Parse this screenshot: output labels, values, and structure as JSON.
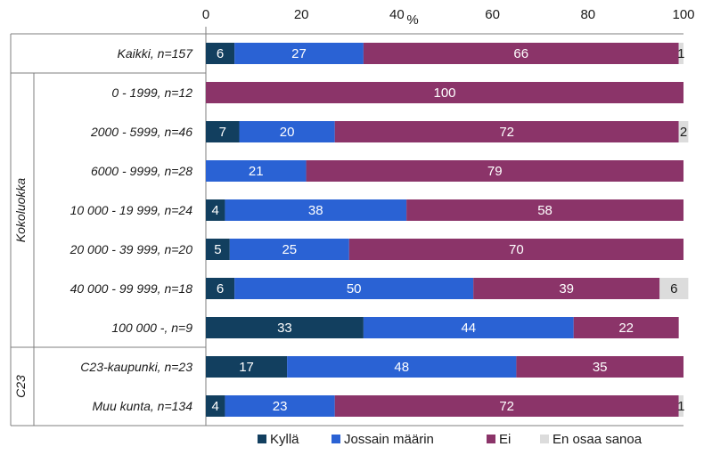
{
  "chart_data": {
    "type": "bar",
    "orientation": "horizontal",
    "stacked": true,
    "axis_unit": "%",
    "xlim": [
      0,
      100
    ],
    "x_ticks": [
      "0",
      "20",
      "40",
      "60",
      "80",
      "100"
    ],
    "grid": false,
    "legend_position": "bottom",
    "categories": [
      "Kaikki, n=157",
      "0 - 1999, n=12",
      "2000 - 5999, n=46",
      "6000 - 9999, n=28",
      "10 000 - 19 999, n=24",
      "20 000 - 39 999, n=20",
      "40 000 - 99 999, n=18",
      "100 000 -, n=9",
      "C23-kaupunki, n=23",
      "Muu kunta, n=134"
    ],
    "groups": [
      {
        "label": "Kokoluokka",
        "from": 1,
        "to": 7
      },
      {
        "label": "C23",
        "from": 8,
        "to": 9
      }
    ],
    "series": [
      {
        "name": "Kyllä",
        "color": "#123f5f",
        "values": [
          6,
          0,
          7,
          0,
          4,
          5,
          6,
          33,
          17,
          4
        ]
      },
      {
        "name": "Jossain määrin",
        "color": "#2a62d4",
        "values": [
          27,
          0,
          20,
          21,
          38,
          25,
          50,
          44,
          48,
          23
        ]
      },
      {
        "name": "Ei",
        "color": "#8b3469",
        "values": [
          66,
          100,
          72,
          79,
          58,
          70,
          39,
          22,
          35,
          72
        ]
      },
      {
        "name": "En osaa sanoa",
        "color": "#dcdcdc",
        "values": [
          1,
          0,
          2,
          0,
          0,
          0,
          6,
          0,
          0,
          1
        ]
      }
    ]
  }
}
